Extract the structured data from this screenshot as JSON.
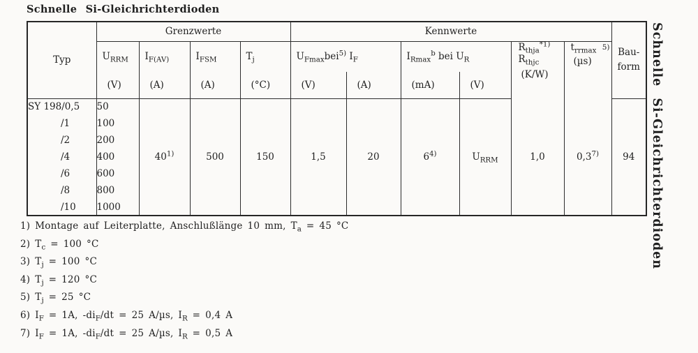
{
  "colors": {
    "ink": "#1f1f1f",
    "paper": "#fbfaf8",
    "table_line": "#2c2c2c"
  },
  "title": "Schnelle Si-Gleichrichterdioden",
  "side_title": "Schnelle Si-Gleichrichterdioden",
  "table": {
    "typ": "Typ",
    "grenzwerte": "Grenzwerte",
    "kennwerte": "Kennwerte",
    "bauform_l1": "Bau-",
    "bauform_l2": "form",
    "headers": {
      "urrm": [
        [
          "t",
          "U"
        ],
        [
          "sub",
          "RRM"
        ]
      ],
      "ifav": [
        [
          "t",
          "I"
        ],
        [
          "sub",
          "F(AV)"
        ]
      ],
      "ifsm": [
        [
          "t",
          "I"
        ],
        [
          "sub",
          "FSM"
        ]
      ],
      "tj": [
        [
          "t",
          "T"
        ],
        [
          "sub",
          "j"
        ]
      ],
      "ufmax": [
        [
          "t",
          "U"
        ],
        [
          "sub",
          "Fmax"
        ],
        [
          "t",
          "bei"
        ],
        [
          "sup",
          "5)"
        ],
        [
          "t",
          " I"
        ],
        [
          "sub",
          "F"
        ]
      ],
      "irmax": [
        [
          "t",
          "I"
        ],
        [
          "sub",
          "Rmax"
        ],
        [
          "sup",
          "b"
        ],
        [
          "t",
          " bei U"
        ],
        [
          "sub",
          "R"
        ]
      ],
      "rth_l1": [
        [
          "t",
          "R"
        ],
        [
          "sub",
          "thja"
        ],
        [
          "sup",
          "*1)"
        ]
      ],
      "rth_l2": [
        [
          "t",
          "R"
        ],
        [
          "sub",
          "thjc"
        ]
      ],
      "rth_unit": "(K/W)",
      "trr": [
        [
          "t",
          "t"
        ],
        [
          "sub",
          "rrmax"
        ]
      ],
      "trr_sup": "5)",
      "trr_unit": "(µs)",
      "units": {
        "urrm": "(V)",
        "ifav": "(A)",
        "ifsm": "(A)",
        "tj": "(°C)",
        "uf": "(V)",
        "if": "(A)",
        "ir": "(mA)",
        "ur": "(V)"
      }
    },
    "rows": [
      {
        "typ": "SY 198/0,5",
        "urrm": "50"
      },
      {
        "typ": "/1",
        "urrm": "100"
      },
      {
        "typ": "/2",
        "urrm": "200"
      },
      {
        "typ": "/4",
        "urrm": "400"
      },
      {
        "typ": "/6",
        "urrm": "600"
      },
      {
        "typ": "/8",
        "urrm": "800"
      },
      {
        "typ": "/10",
        "urrm": "1000"
      }
    ],
    "values": {
      "ifav": [
        [
          "t",
          "40"
        ],
        [
          "sup",
          "1)"
        ]
      ],
      "ifsm": "500",
      "tj": "150",
      "ufmax": "1,5",
      "if": "20",
      "irmax": [
        [
          "t",
          "6"
        ],
        [
          "sup",
          "4)"
        ]
      ],
      "ur": [
        [
          "t",
          "U"
        ],
        [
          "sub",
          "RRM"
        ]
      ],
      "rth": "1,0",
      "trr": [
        [
          "t",
          "0,3"
        ],
        [
          "sup",
          "7)"
        ]
      ],
      "bauform": "94"
    }
  },
  "footnotes": [
    [
      [
        "t",
        "1) Montage auf Leiterplatte, Anschlußlänge 10 mm, T"
      ],
      [
        "sub",
        "a"
      ],
      [
        "t",
        " = 45 °C"
      ]
    ],
    [
      [
        "t",
        "2) T"
      ],
      [
        "sub",
        "c"
      ],
      [
        "t",
        " = 100 °C"
      ]
    ],
    [
      [
        "t",
        "3) T"
      ],
      [
        "sub",
        "j"
      ],
      [
        "t",
        " = 100 °C"
      ]
    ],
    [
      [
        "t",
        "4) T"
      ],
      [
        "sub",
        "j"
      ],
      [
        "t",
        " = 120 °C"
      ]
    ],
    [
      [
        "t",
        "5) T"
      ],
      [
        "sub",
        "j"
      ],
      [
        "t",
        " = 25 °C"
      ]
    ],
    [
      [
        "t",
        "6) I"
      ],
      [
        "sub",
        "F"
      ],
      [
        "t",
        " = 1A, -di"
      ],
      [
        "sub",
        "F"
      ],
      [
        "t",
        "/dt = 25 A/µs, I"
      ],
      [
        "sub",
        "R"
      ],
      [
        "t",
        " = 0,4 A"
      ]
    ],
    [
      [
        "t",
        "7) I"
      ],
      [
        "sub",
        "F"
      ],
      [
        "t",
        " = 1A, -di"
      ],
      [
        "sub",
        "F"
      ],
      [
        "t",
        "/dt = 25 A/µs, I"
      ],
      [
        "sub",
        "R"
      ],
      [
        "t",
        " = 0,5 A"
      ]
    ]
  ]
}
